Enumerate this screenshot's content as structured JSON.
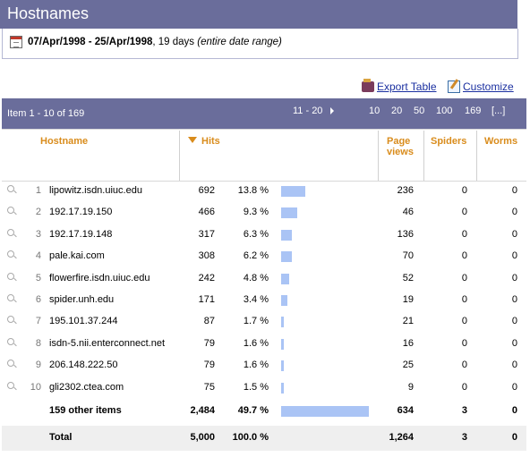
{
  "header": {
    "title": "Hostnames"
  },
  "date_range": {
    "range": "07/Apr/1998 - 25/Apr/1998",
    "days": ", 19 days ",
    "note": "(entire date range)"
  },
  "actions": {
    "export": "Export Table",
    "customize": "Customize"
  },
  "pagination": {
    "item_range": "Item 1 - 10 of 169",
    "next": "11 - 20",
    "sizes": [
      "10",
      "20",
      "50",
      "100",
      "169",
      "[...]"
    ]
  },
  "columns": {
    "hostname": "Hostname",
    "hits": "Hits",
    "page_views_1": "Page",
    "page_views_2": "views",
    "spiders": "Spiders",
    "worms": "Worms"
  },
  "rows": [
    {
      "n": "1",
      "host": "lipowitz.isdn.uiuc.edu",
      "hits": "692",
      "pct": "13.8 %",
      "share": 13.8,
      "pv": "236",
      "spiders": "0",
      "worms": "0"
    },
    {
      "n": "2",
      "host": "192.17.19.150",
      "hits": "466",
      "pct": "9.3 %",
      "share": 9.3,
      "pv": "46",
      "spiders": "0",
      "worms": "0"
    },
    {
      "n": "3",
      "host": "192.17.19.148",
      "hits": "317",
      "pct": "6.3 %",
      "share": 6.3,
      "pv": "136",
      "spiders": "0",
      "worms": "0"
    },
    {
      "n": "4",
      "host": "pale.kai.com",
      "hits": "308",
      "pct": "6.2 %",
      "share": 6.2,
      "pv": "70",
      "spiders": "0",
      "worms": "0"
    },
    {
      "n": "5",
      "host": "flowerfire.isdn.uiuc.edu",
      "hits": "242",
      "pct": "4.8 %",
      "share": 4.8,
      "pv": "52",
      "spiders": "0",
      "worms": "0"
    },
    {
      "n": "6",
      "host": "spider.unh.edu",
      "hits": "171",
      "pct": "3.4 %",
      "share": 3.4,
      "pv": "19",
      "spiders": "0",
      "worms": "0"
    },
    {
      "n": "7",
      "host": "195.101.37.244",
      "hits": "87",
      "pct": "1.7 %",
      "share": 1.7,
      "pv": "21",
      "spiders": "0",
      "worms": "0"
    },
    {
      "n": "8",
      "host": "isdn-5.nii.enterconnect.net",
      "hits": "79",
      "pct": "1.6 %",
      "share": 1.6,
      "pv": "16",
      "spiders": "0",
      "worms": "0"
    },
    {
      "n": "9",
      "host": "206.148.222.50",
      "hits": "79",
      "pct": "1.6 %",
      "share": 1.6,
      "pv": "25",
      "spiders": "0",
      "worms": "0"
    },
    {
      "n": "10",
      "host": "gli2302.ctea.com",
      "hits": "75",
      "pct": "1.5 %",
      "share": 1.5,
      "pv": "9",
      "spiders": "0",
      "worms": "0"
    }
  ],
  "other": {
    "label": "159 other items",
    "hits": "2,484",
    "pct": "49.7 %",
    "share": 49.7,
    "pv": "634",
    "spiders": "3",
    "worms": "0"
  },
  "total": {
    "label": "Total",
    "hits": "5,000",
    "pct": "100.0 %",
    "pv": "1,264",
    "spiders": "3",
    "worms": "0"
  }
}
